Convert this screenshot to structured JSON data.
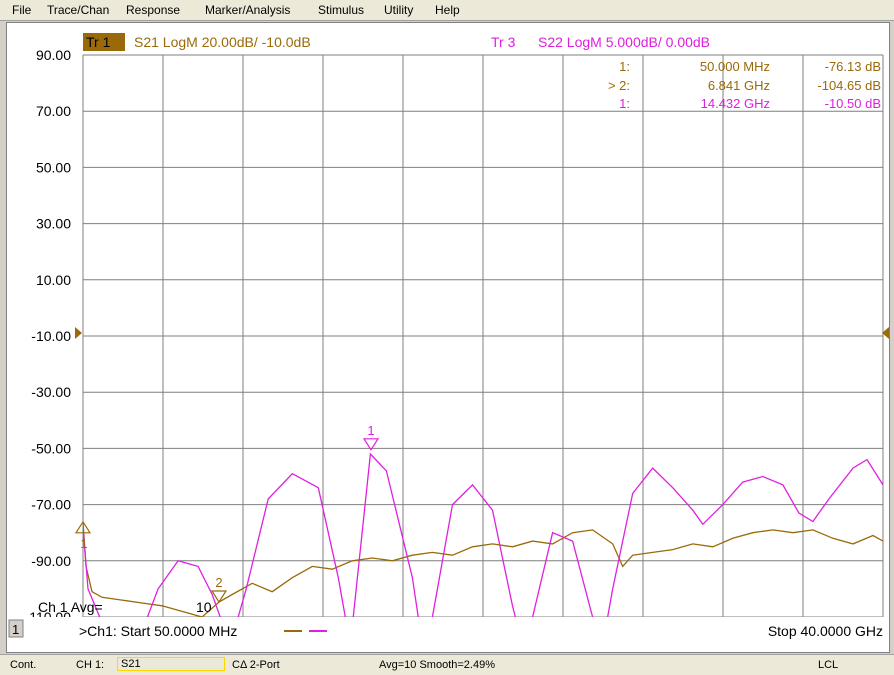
{
  "menu": {
    "items": [
      "File",
      "Trace/Chan",
      "Response",
      "Marker/Analysis",
      "Stimulus",
      "Utility",
      "Help"
    ]
  },
  "traces": {
    "tr1": {
      "badge": "Tr 1",
      "label": "S21 LogM 20.00dB/  -10.0dB",
      "color": "#9a6a0a",
      "badge_bg": "#9a6a0a"
    },
    "tr3": {
      "badge": "Tr 3",
      "label": "S22 LogM 5.000dB/  0.00dB",
      "color": "#e020e0"
    }
  },
  "markers_table": [
    {
      "id": "1:",
      "freq": "50.000 MHz",
      "value": "-76.13 dB",
      "color": "#9a6a0a"
    },
    {
      "id": "> 2:",
      "freq": "6.841 GHz",
      "value": "-104.65 dB",
      "color": "#9a6a0a"
    },
    {
      "id": "1:",
      "freq": "14.432 GHz",
      "value": "-10.50 dB",
      "color": "#e020e0"
    }
  ],
  "channel": {
    "number": "1",
    "start_label": ">Ch1: Start  50.0000 MHz",
    "stop_label": "Stop  40.0000 GHz",
    "avg_label": "Ch 1 Avg=",
    "avg_value": "10"
  },
  "status": {
    "mode": "Cont.",
    "channel": "CH 1:",
    "param": "S21",
    "cal": "CΔ 2-Port",
    "avg": "Avg=10 Smooth=2.49%",
    "lcl": "LCL"
  },
  "chart_data": {
    "type": "line",
    "x_range_ghz": [
      0.05,
      40
    ],
    "ylim": [
      -110,
      90
    ],
    "y_ticks": [
      "90.00",
      "70.00",
      "50.00",
      "30.00",
      "10.00",
      "-10.00",
      "-30.00",
      "-50.00",
      "-70.00",
      "-90.00",
      "-110.00"
    ],
    "grid": true,
    "series": [
      {
        "name": "S21 LogM",
        "color": "#9a6a0a",
        "points": [
          [
            0.05,
            -76
          ],
          [
            0.2,
            -92
          ],
          [
            0.5,
            -101
          ],
          [
            1,
            -103
          ],
          [
            2,
            -104
          ],
          [
            3,
            -105
          ],
          [
            4,
            -106
          ],
          [
            5,
            -108
          ],
          [
            6,
            -110
          ],
          [
            6.84,
            -104.65
          ],
          [
            7.5,
            -102
          ],
          [
            8.5,
            -98
          ],
          [
            9.5,
            -101
          ],
          [
            10.5,
            -96
          ],
          [
            11.5,
            -92
          ],
          [
            12.5,
            -93
          ],
          [
            13.5,
            -90
          ],
          [
            14.5,
            -89
          ],
          [
            15.5,
            -90
          ],
          [
            16.5,
            -88
          ],
          [
            17.5,
            -87
          ],
          [
            18.5,
            -88
          ],
          [
            19.5,
            -85
          ],
          [
            20.5,
            -84
          ],
          [
            21.5,
            -85
          ],
          [
            22.5,
            -83
          ],
          [
            23.5,
            -84
          ],
          [
            24.5,
            -80
          ],
          [
            25.5,
            -79
          ],
          [
            26.5,
            -84
          ],
          [
            27,
            -92
          ],
          [
            27.5,
            -88
          ],
          [
            28.5,
            -87
          ],
          [
            29.5,
            -86
          ],
          [
            30.5,
            -84
          ],
          [
            31.5,
            -85
          ],
          [
            32.5,
            -82
          ],
          [
            33.5,
            -80
          ],
          [
            34.5,
            -79
          ],
          [
            35.5,
            -80
          ],
          [
            36.5,
            -79
          ],
          [
            37.5,
            -82
          ],
          [
            38.5,
            -84
          ],
          [
            39.5,
            -81
          ],
          [
            40,
            -83
          ]
        ]
      },
      {
        "name": "S22 LogM",
        "color": "#e020e0",
        "points": [
          [
            0.05,
            -78
          ],
          [
            0.3,
            -100
          ],
          [
            1,
            -112
          ],
          [
            2,
            -115
          ],
          [
            3,
            -115
          ],
          [
            3.8,
            -100
          ],
          [
            4.8,
            -90
          ],
          [
            5.8,
            -92
          ],
          [
            6.5,
            -102
          ],
          [
            7.4,
            -120
          ],
          [
            8.2,
            -100
          ],
          [
            9.3,
            -68
          ],
          [
            10.5,
            -59
          ],
          [
            11.8,
            -64
          ],
          [
            12.8,
            -96
          ],
          [
            13.4,
            -120
          ],
          [
            14.4,
            -52
          ],
          [
            15.2,
            -58
          ],
          [
            16.5,
            -96
          ],
          [
            17,
            -120
          ],
          [
            17.5,
            -110
          ],
          [
            18.5,
            -70
          ],
          [
            19.5,
            -63
          ],
          [
            20.5,
            -72
          ],
          [
            21.5,
            -106
          ],
          [
            22,
            -120
          ],
          [
            22.5,
            -110
          ],
          [
            23.5,
            -80
          ],
          [
            24.5,
            -83
          ],
          [
            25.5,
            -110
          ],
          [
            26,
            -120
          ],
          [
            26.5,
            -100
          ],
          [
            27.5,
            -66
          ],
          [
            28.5,
            -57
          ],
          [
            29.5,
            -64
          ],
          [
            30.5,
            -72
          ],
          [
            31,
            -77
          ],
          [
            32,
            -70
          ],
          [
            33,
            -62
          ],
          [
            34,
            -60
          ],
          [
            35,
            -63
          ],
          [
            35.8,
            -73
          ],
          [
            36.5,
            -76
          ],
          [
            37.3,
            -68
          ],
          [
            38.5,
            -57
          ],
          [
            39.2,
            -54
          ],
          [
            40,
            -63
          ]
        ]
      }
    ],
    "markers": [
      {
        "label": "1",
        "x": 14.432,
        "y": -50.5,
        "color": "#e020e0",
        "style": "down"
      },
      {
        "label": "2",
        "x": 6.841,
        "y": -104.65,
        "color": "#9a6a0a",
        "style": "down"
      },
      {
        "label": "1",
        "x": 0.05,
        "y": -76.13,
        "color": "#9a6a0a",
        "style": "up"
      }
    ]
  }
}
